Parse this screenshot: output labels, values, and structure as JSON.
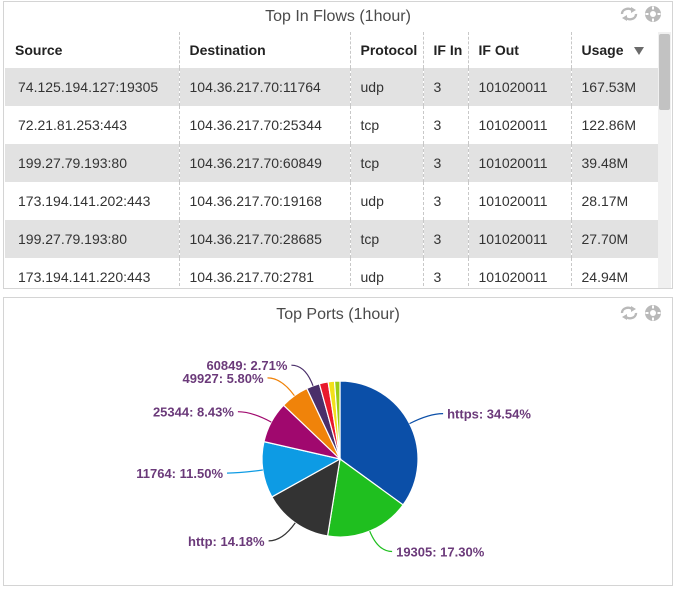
{
  "flows_panel": {
    "title": "Top In Flows (1hour)",
    "columns": [
      "Source",
      "Destination",
      "Protocol",
      "IF In",
      "IF Out",
      "Usage"
    ],
    "sort_column": "Usage",
    "sort_direction": "descending",
    "rows": [
      [
        "74.125.194.127:19305",
        "104.36.217.70:11764",
        "udp",
        "3",
        "101020011",
        "167.53M"
      ],
      [
        "72.21.81.253:443",
        "104.36.217.70:25344",
        "tcp",
        "3",
        "101020011",
        "122.86M"
      ],
      [
        "199.27.79.193:80",
        "104.36.217.70:60849",
        "tcp",
        "3",
        "101020011",
        "39.48M"
      ],
      [
        "173.194.141.202:443",
        "104.36.217.70:19168",
        "udp",
        "3",
        "101020011",
        "28.17M"
      ],
      [
        "199.27.79.193:80",
        "104.36.217.70:28685",
        "tcp",
        "3",
        "101020011",
        "27.70M"
      ],
      [
        "173.194.141.220:443",
        "104.36.217.70:2781",
        "udp",
        "3",
        "101020011",
        "24.94M"
      ]
    ]
  },
  "ports_panel": {
    "title": "Top Ports (1hour)"
  },
  "icons": [
    "refresh-icon",
    "settings-icon"
  ],
  "colors": {
    "row_alt": "#e2e2e2",
    "label_text": "#6b3a7a",
    "border": "#d4d4d4"
  },
  "chart_data": {
    "type": "pie",
    "slices": [
      {
        "label": "https",
        "value": 34.54,
        "text": "https: 34.54%",
        "color": "#0b4fa8"
      },
      {
        "label": "19305",
        "value": 17.3,
        "text": "19305: 17.30%",
        "color": "#1fbf1f"
      },
      {
        "label": "http",
        "value": 14.18,
        "text": "http: 14.18%",
        "color": "#333333"
      },
      {
        "label": "11764",
        "value": 11.5,
        "text": "11764: 11.50%",
        "color": "#0d9be4"
      },
      {
        "label": "25344",
        "value": 8.43,
        "text": "25344: 8.43%",
        "color": "#a0086e"
      },
      {
        "label": "49927",
        "value": 5.8,
        "text": "49927: 5.80%",
        "color": "#f0830a"
      },
      {
        "label": "60849",
        "value": 2.71,
        "text": "60849: 2.71%",
        "color": "#4a2f6a"
      },
      {
        "label": "",
        "value": 1.8,
        "text": "",
        "color": "#e8192c"
      },
      {
        "label": "",
        "value": 1.3,
        "text": "",
        "color": "#f2e01a"
      },
      {
        "label": "",
        "value": 1.1,
        "text": "",
        "color": "#9acd14"
      }
    ]
  }
}
